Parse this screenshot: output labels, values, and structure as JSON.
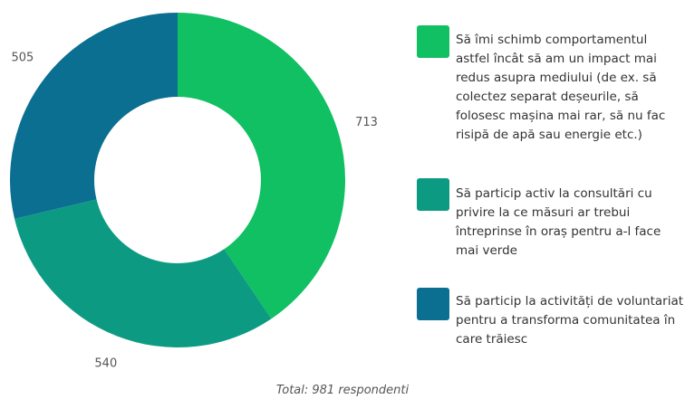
{
  "chart_data": {
    "type": "donut",
    "categories": [
      "Să îmi schimb comportamentul astfel încât să am un impact mai redus asupra mediului (de ex. să colectez separat deșeurile, să folosesc mașina mai rar, să nu fac risipă de apă sau energie etc.)",
      "Să particip activ la consultări cu privire la ce măsuri ar trebui întreprinse în oraș pentru a-l face mai verde",
      "Să particip la activități de voluntariat pentru a transforma comunitatea în care trăiesc"
    ],
    "values": [
      713,
      540,
      505
    ],
    "colors": [
      "#10c062",
      "#0c9b82",
      "#0a6f90"
    ],
    "annotation": "Total: 981 respondenti"
  }
}
